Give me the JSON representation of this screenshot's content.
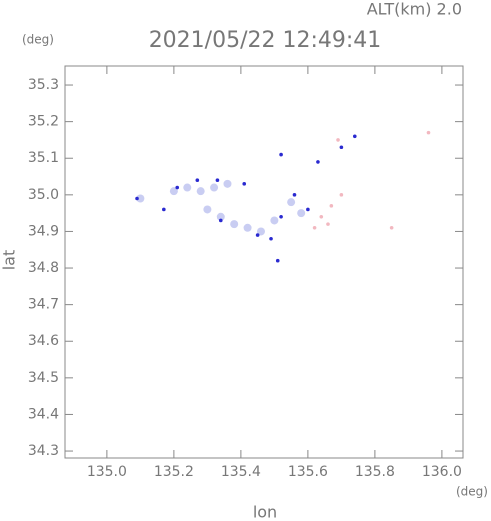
{
  "chart_data": {
    "type": "scatter",
    "title": "2021/05/22 12:49:41",
    "subtitle": "ALT(km) 2.0",
    "x_label": "lon",
    "y_label": "lat",
    "x_unit": "(deg)",
    "y_unit": "(deg)",
    "xlim": [
      134.875,
      136.063
    ],
    "ylim": [
      34.281,
      35.352
    ],
    "xticks": [
      {
        "value": 135,
        "label": "135.0"
      },
      135.2,
      135.4,
      135.6,
      135.8,
      {
        "value": 136,
        "label": "136.0"
      }
    ],
    "yticks": [
      35.3,
      35.2,
      35.1,
      {
        "value": 35,
        "label": "35.0"
      },
      34.9,
      34.8,
      34.7,
      34.6,
      34.5,
      34.4,
      34.3
    ],
    "series": [
      {
        "color": "#c9cdf2",
        "x": [
          135.2,
          135.24,
          135.28,
          135.32,
          135.36,
          135.3,
          135.34,
          135.38,
          135.42,
          135.46,
          135.5,
          135.55,
          135.58,
          135.1
        ],
        "y": [
          35.01,
          35.02,
          35.01,
          35.02,
          35.03,
          34.96,
          34.94,
          34.92,
          34.91,
          34.9,
          34.93,
          34.98,
          34.95,
          34.99
        ]
      },
      {
        "color": "#2a2ad0",
        "x": [
          135.09,
          135.17,
          135.21,
          135.27,
          135.33,
          135.41,
          135.34,
          135.45,
          135.49,
          135.52,
          135.56,
          135.6,
          135.52,
          135.63,
          135.7,
          135.74,
          135.51
        ],
        "y": [
          34.99,
          34.96,
          35.02,
          35.04,
          35.04,
          35.03,
          34.93,
          34.89,
          34.88,
          34.94,
          35.0,
          34.96,
          35.11,
          35.09,
          35.13,
          35.16,
          34.82
        ]
      },
      {
        "color": "#f2b8c0",
        "x": [
          135.62,
          135.64,
          135.67,
          135.7,
          135.66,
          135.96,
          135.85,
          135.69
        ],
        "y": [
          34.91,
          34.94,
          34.97,
          35.0,
          34.92,
          35.17,
          34.91,
          35.15
        ]
      }
    ]
  }
}
